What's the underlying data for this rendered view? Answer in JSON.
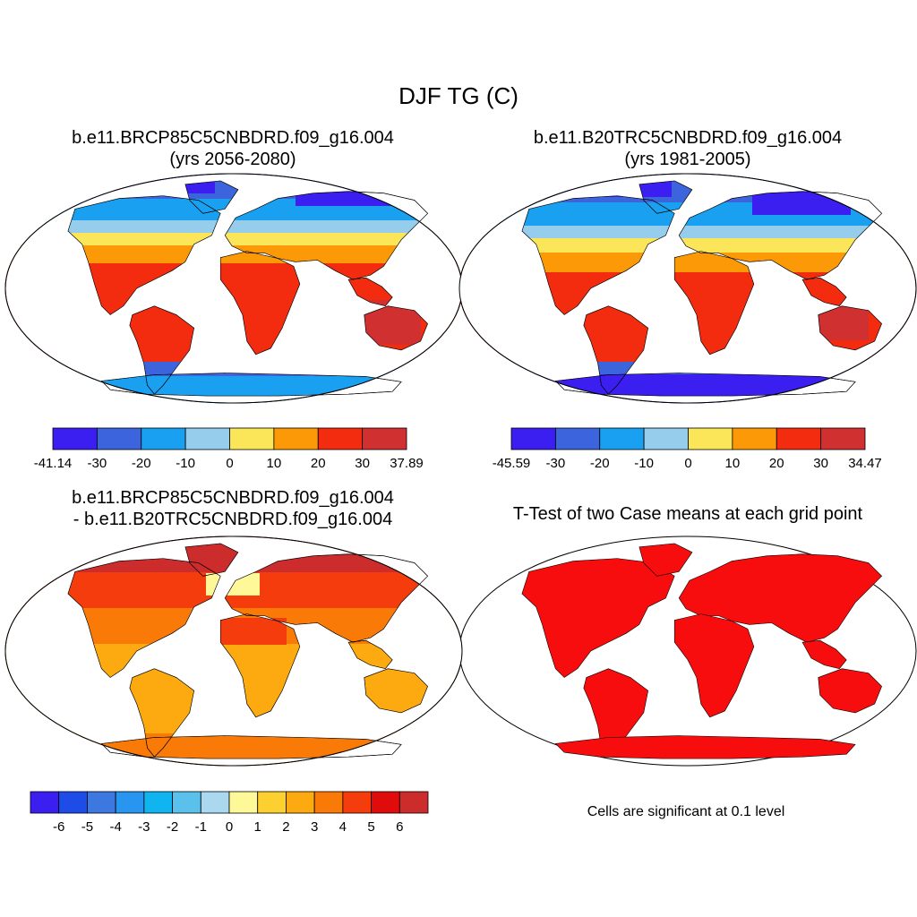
{
  "figure": {
    "title": "DJF TG (C)",
    "note": "Cells are significant at 0.1 level"
  },
  "panels": [
    {
      "title_line1": "b.e11.BRCP85C5CNBDRD.f09_g16.004",
      "title_line2": "(yrs 2056-2080)",
      "colorbar": {
        "colors": [
          "#3a1ff0",
          "#3c64dc",
          "#1aa0f0",
          "#96cdec",
          "#fbe65a",
          "#fb9a06",
          "#f32c10",
          "#d03030"
        ],
        "labels": [
          "-41.14",
          "-30",
          "-20",
          "-10",
          "0",
          "10",
          "20",
          "30",
          "37.89"
        ]
      }
    },
    {
      "title_line1": "b.e11.B20TRC5CNBDRD.f09_g16.004",
      "title_line2": "(yrs 1981-2005)",
      "colorbar": {
        "colors": [
          "#3a1ff0",
          "#3c64dc",
          "#1aa0f0",
          "#96cdec",
          "#fbe65a",
          "#fb9a06",
          "#f32c10",
          "#d03030"
        ],
        "labels": [
          "-45.59",
          "-30",
          "-20",
          "-10",
          "0",
          "10",
          "20",
          "30",
          "34.47"
        ]
      }
    },
    {
      "title_line1": "b.e11.BRCP85C5CNBDRD.f09_g16.004",
      "title_line2": "- b.e11.B20TRC5CNBDRD.f09_g16.004",
      "colorbar": {
        "colors": [
          "#3a1ff0",
          "#1e4ce8",
          "#3c78e0",
          "#2896f0",
          "#10b4f0",
          "#5ac0ec",
          "#aad8ee",
          "#fff898",
          "#fcd030",
          "#fcaa10",
          "#fa7a08",
          "#f43c0c",
          "#e00c0c",
          "#cc2c2c"
        ],
        "labels": [
          "-6",
          "-5",
          "-4",
          "-3",
          "-2",
          "-1",
          "0",
          "1",
          "2",
          "3",
          "4",
          "5",
          "6"
        ]
      }
    },
    {
      "title": "T-Test of two Case means at each grid point"
    }
  ]
}
